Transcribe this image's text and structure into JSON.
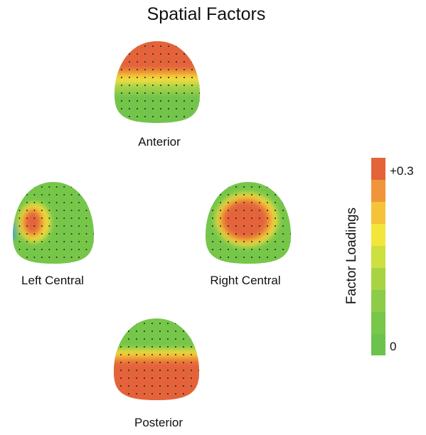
{
  "title": "Spatial Factors",
  "maps": [
    {
      "label": "Anterior"
    },
    {
      "label": "Left Central"
    },
    {
      "label": "Right Central"
    },
    {
      "label": "Posterior"
    }
  ],
  "colorbar": {
    "title": "Factor Loadings",
    "top_label": "+0.3",
    "bottom_label": "0"
  }
}
